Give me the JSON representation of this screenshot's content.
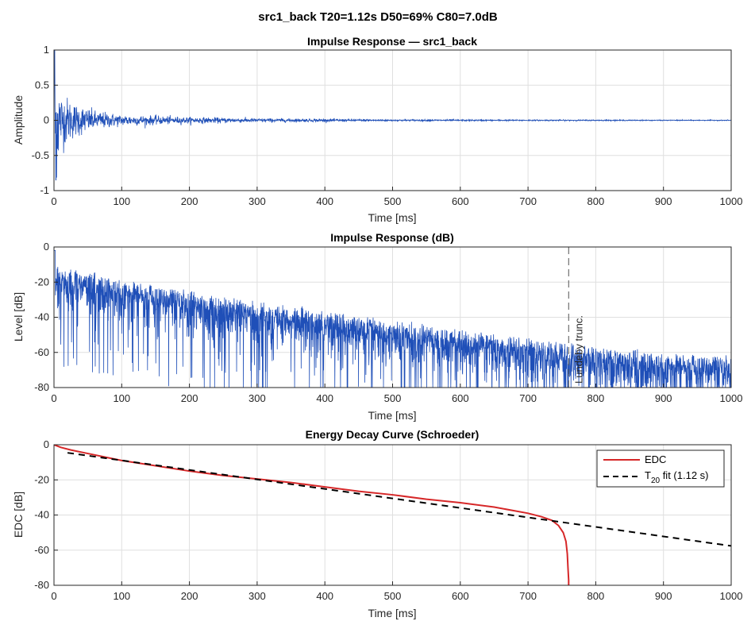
{
  "suptitle": "src1_back     T20=1.12s  D50=69% C80=7.0dB",
  "colors": {
    "ir": "#1f4fb8",
    "edc": "#d62728",
    "fit": "#000000",
    "marker": "#555555"
  },
  "chart_data": [
    {
      "type": "line",
      "title": "Impulse Response  —  src1_back",
      "xlabel": "Time [ms]",
      "ylabel": "Amplitude",
      "xlim": [
        0,
        1000
      ],
      "ylim": [
        -1,
        1
      ],
      "xticks": [
        0,
        100,
        200,
        300,
        400,
        500,
        600,
        700,
        800,
        900,
        1000
      ],
      "yticks": [
        -1,
        -0.5,
        0,
        0.5,
        1
      ],
      "grid": true,
      "series": [
        {
          "style": "noise-envelope",
          "peak": {
            "x": 1,
            "y": 1.0
          },
          "envelope": {
            "x": [
              0,
              10,
              30,
              60,
              100,
              200,
              300,
              500,
              700,
              1000
            ],
            "y": [
              0.95,
              0.35,
              0.22,
              0.12,
              0.07,
              0.04,
              0.025,
              0.012,
              0.008,
              0.005
            ]
          }
        }
      ]
    },
    {
      "type": "line",
      "title": "Impulse Response (dB)",
      "xlabel": "Time [ms]",
      "ylabel": "Level [dB]",
      "xlim": [
        0,
        1000
      ],
      "ylim": [
        -80,
        0
      ],
      "xticks": [
        0,
        100,
        200,
        300,
        400,
        500,
        600,
        700,
        800,
        900,
        1000
      ],
      "yticks": [
        -80,
        -60,
        -40,
        -20,
        0
      ],
      "grid": true,
      "series": [
        {
          "style": "noise-db",
          "top": {
            "x": [
              0,
              100,
              200,
              300,
              400,
              500,
              600,
              700,
              800,
              900,
              1000
            ],
            "y": [
              -10,
              -17,
              -24,
              -30,
              -35,
              -41,
              -46,
              -51,
              -56,
              -59,
              -61
            ]
          }
        }
      ],
      "annotations": [
        {
          "x": 760,
          "text": "Lundeby trunc."
        }
      ]
    },
    {
      "type": "line",
      "title": "Energy Decay Curve (Schroeder)",
      "xlabel": "Time [ms]",
      "ylabel": "EDC [dB]",
      "xlim": [
        0,
        1000
      ],
      "ylim": [
        -80,
        0
      ],
      "xticks": [
        0,
        100,
        200,
        300,
        400,
        500,
        600,
        700,
        800,
        900,
        1000
      ],
      "yticks": [
        -80,
        -60,
        -40,
        -20,
        0
      ],
      "grid": true,
      "legend": "top-right",
      "series": [
        {
          "name": "EDC",
          "x": [
            0,
            10,
            25,
            50,
            75,
            100,
            150,
            200,
            250,
            300,
            350,
            400,
            450,
            500,
            550,
            600,
            650,
            700,
            720,
            735,
            745,
            752,
            756,
            758,
            759,
            760,
            760
          ],
          "y": [
            0,
            -1.5,
            -3,
            -5,
            -7,
            -9,
            -12,
            -15,
            -17.5,
            -19.5,
            -21.5,
            -24,
            -26.5,
            -28.5,
            -31,
            -33,
            -35.5,
            -39,
            -41,
            -43,
            -46,
            -50,
            -55,
            -62,
            -70,
            -77,
            -80
          ]
        },
        {
          "name": "T20 fit (1.12 s)",
          "legend_main": "T",
          "legend_sub": "20",
          "legend_rest": " fit (1.12 s)",
          "x": [
            20,
            1000
          ],
          "y": [
            -4.6,
            -57.6
          ]
        }
      ]
    }
  ]
}
